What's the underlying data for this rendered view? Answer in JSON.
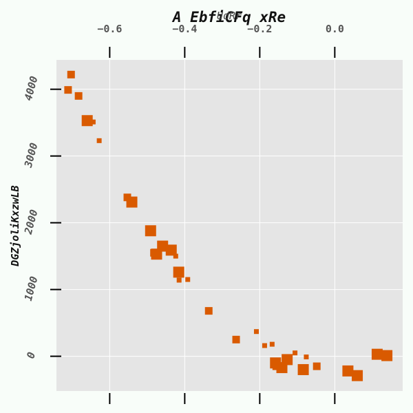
{
  "chart_data": {
    "type": "scatter",
    "title": "A EbfiCFq xRe",
    "xlabel": "UdRr",
    "ylabel": "DGZjoliKxzwLB",
    "x_axis_position": "top",
    "grid": true,
    "legend": "none",
    "xlim": [
      -0.742,
      0.181
    ],
    "ylim": [
      -520,
      4440
    ],
    "x_ticks": [
      -0.6,
      -0.4,
      -0.2,
      0.0
    ],
    "x_tick_labels": [
      "−0.6",
      "−0.4",
      "−0.2",
      "0.0"
    ],
    "y_ticks": [
      0,
      1000,
      2000,
      3000,
      4000
    ],
    "y_tick_labels": [
      "0",
      "1000",
      "2000",
      "3000",
      "4000"
    ],
    "series": [
      {
        "marker": "square",
        "color": "#d95a00",
        "points": [
          {
            "x": -0.703,
            "y": 4220,
            "size": "medium"
          },
          {
            "x": -0.711,
            "y": 3990,
            "size": "medium"
          },
          {
            "x": -0.683,
            "y": 3900,
            "size": "medium"
          },
          {
            "x": -0.66,
            "y": 3530,
            "size": "large"
          },
          {
            "x": -0.644,
            "y": 3510,
            "size": "small"
          },
          {
            "x": -0.628,
            "y": 3230,
            "size": "small"
          },
          {
            "x": -0.553,
            "y": 2380,
            "size": "medium"
          },
          {
            "x": -0.541,
            "y": 2310,
            "size": "large"
          },
          {
            "x": -0.491,
            "y": 1880,
            "size": "large"
          },
          {
            "x": -0.482,
            "y": 1550,
            "size": "medium"
          },
          {
            "x": -0.475,
            "y": 1530,
            "size": "large"
          },
          {
            "x": -0.459,
            "y": 1650,
            "size": "large"
          },
          {
            "x": -0.436,
            "y": 1590,
            "size": "large"
          },
          {
            "x": -0.424,
            "y": 1500,
            "size": "small"
          },
          {
            "x": -0.416,
            "y": 1260,
            "size": "large"
          },
          {
            "x": -0.415,
            "y": 1140,
            "size": "small"
          },
          {
            "x": -0.392,
            "y": 1150,
            "size": "small"
          },
          {
            "x": -0.336,
            "y": 680,
            "size": "medium"
          },
          {
            "x": -0.263,
            "y": 250,
            "size": "medium"
          },
          {
            "x": -0.209,
            "y": 370,
            "size": "small"
          },
          {
            "x": -0.187,
            "y": 160,
            "size": "small"
          },
          {
            "x": -0.167,
            "y": 180,
            "size": "small"
          },
          {
            "x": -0.158,
            "y": -100,
            "size": "large"
          },
          {
            "x": -0.156,
            "y": -150,
            "size": "medium"
          },
          {
            "x": -0.141,
            "y": -170,
            "size": "large"
          },
          {
            "x": -0.127,
            "y": -50,
            "size": "large"
          },
          {
            "x": -0.106,
            "y": 50,
            "size": "small"
          },
          {
            "x": -0.084,
            "y": -200,
            "size": "large"
          },
          {
            "x": -0.076,
            "y": -10,
            "size": "small"
          },
          {
            "x": -0.048,
            "y": -150,
            "size": "medium"
          },
          {
            "x": 0.035,
            "y": -220,
            "size": "large"
          },
          {
            "x": 0.06,
            "y": -290,
            "size": "large"
          },
          {
            "x": 0.113,
            "y": 30,
            "size": "large"
          },
          {
            "x": 0.139,
            "y": 10,
            "size": "large"
          }
        ]
      }
    ]
  }
}
